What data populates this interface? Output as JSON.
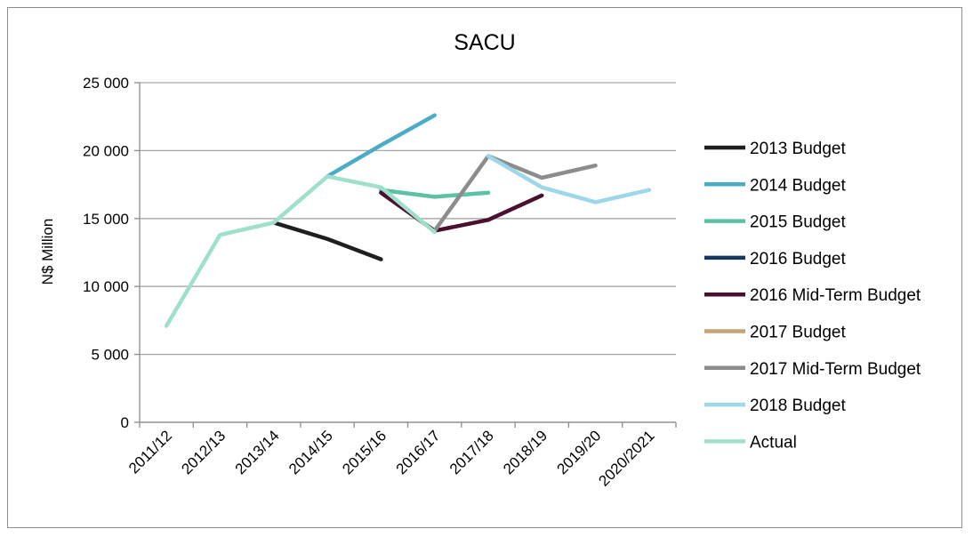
{
  "chart_data": {
    "type": "line",
    "title": "SACU",
    "ylabel": "N$ Million",
    "xlabel": "",
    "categories": [
      "2011/12",
      "2012/13",
      "2013/14",
      "2014/15",
      "2015/16",
      "2016/17",
      "2017/18",
      "2018/19",
      "2019/20",
      "2020/2021"
    ],
    "ylim": [
      0,
      25000
    ],
    "yticks": [
      0,
      5000,
      10000,
      15000,
      20000,
      25000
    ],
    "ytick_labels": [
      "0",
      "5 000",
      "10 000",
      "15 000",
      "20 000",
      "25 000"
    ],
    "grid": "horizontal",
    "legend_position": "right",
    "series": [
      {
        "name": "2013 Budget",
        "color": "#1f1f1f",
        "values": [
          null,
          null,
          14700,
          13500,
          12000,
          null,
          null,
          null,
          null,
          null
        ]
      },
      {
        "name": "2014 Budget",
        "color": "#4bacc6",
        "values": [
          null,
          null,
          null,
          18100,
          20400,
          22600,
          null,
          null,
          null,
          null
        ]
      },
      {
        "name": "2015 Budget",
        "color": "#5cc2a4",
        "values": [
          null,
          null,
          null,
          null,
          17100,
          16600,
          16900,
          null,
          null,
          null
        ]
      },
      {
        "name": "2016 Budget",
        "color": "#17375e",
        "values": [
          null,
          null,
          null,
          null,
          null,
          null,
          null,
          null,
          null,
          null
        ]
      },
      {
        "name": "2016 Mid-Term Budget",
        "color": "#4a1030",
        "values": [
          null,
          null,
          null,
          null,
          16900,
          14100,
          14900,
          16700,
          null,
          null
        ]
      },
      {
        "name": "2017 Budget",
        "color": "#c4a374",
        "values": [
          null,
          null,
          null,
          null,
          null,
          null,
          null,
          null,
          null,
          null
        ]
      },
      {
        "name": "2017 Mid-Term Budget",
        "color": "#8c8c8c",
        "values": [
          null,
          null,
          null,
          null,
          null,
          14100,
          19600,
          18000,
          18900,
          null
        ]
      },
      {
        "name": "2018 Budget",
        "color": "#9cd7ea",
        "values": [
          null,
          null,
          null,
          null,
          null,
          null,
          19600,
          17300,
          16200,
          17100
        ]
      },
      {
        "name": "Actual",
        "color": "#9ee0cb",
        "values": [
          7100,
          13800,
          14700,
          18100,
          17300,
          14000,
          null,
          null,
          null,
          null
        ]
      }
    ]
  }
}
